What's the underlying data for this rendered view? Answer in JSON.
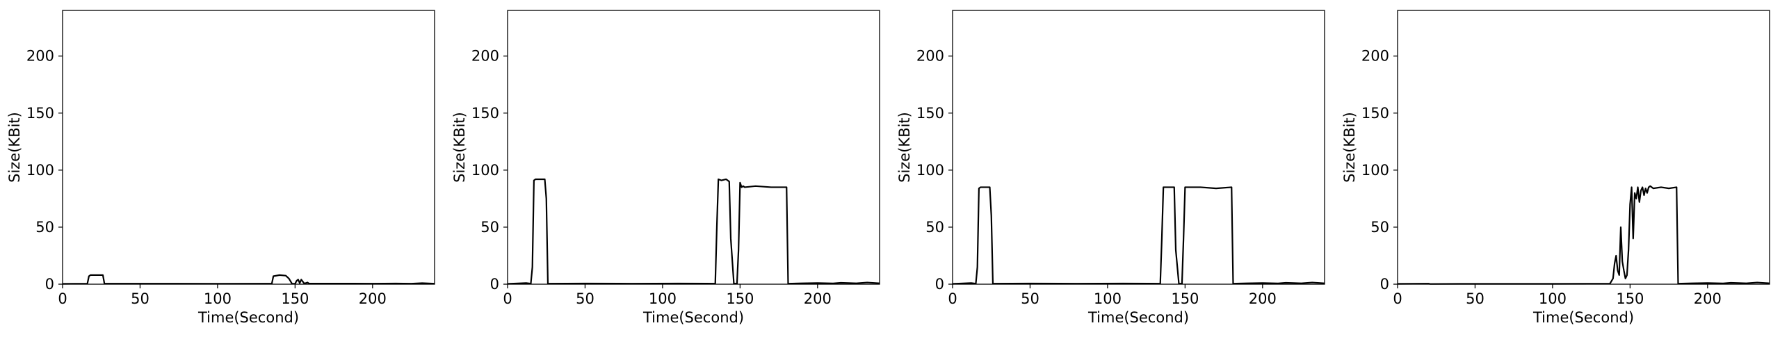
{
  "chart_data": [
    {
      "type": "line",
      "xlabel": "Time(Second)",
      "ylabel": "Size(KBit)",
      "xlim": [
        0,
        240
      ],
      "ylim": [
        0,
        240
      ],
      "xticks": [
        0,
        50,
        100,
        150,
        200
      ],
      "yticks": [
        0,
        50,
        100,
        150,
        200
      ],
      "line_color": "#000000",
      "series": [
        {
          "points": [
            [
              0,
              0.3
            ],
            [
              16,
              0.5
            ],
            [
              17,
              7
            ],
            [
              18,
              8
            ],
            [
              26,
              8
            ],
            [
              27,
              0.5
            ],
            [
              100,
              0.4
            ],
            [
              135,
              0.5
            ],
            [
              136,
              7
            ],
            [
              140,
              8
            ],
            [
              144,
              7.5
            ],
            [
              146,
              5
            ],
            [
              148,
              0.5
            ],
            [
              150,
              0.4
            ],
            [
              151,
              3
            ],
            [
              152,
              4
            ],
            [
              153,
              1
            ],
            [
              154,
              4
            ],
            [
              156,
              0.5
            ],
            [
              158,
              1.5
            ],
            [
              159,
              0.6
            ],
            [
              200,
              0.5
            ],
            [
              215,
              0.6
            ],
            [
              225,
              0.5
            ],
            [
              232,
              0.9
            ],
            [
              240,
              0.5
            ]
          ]
        }
      ]
    },
    {
      "type": "line",
      "xlabel": "Time(Second)",
      "ylabel": "Size(KBit)",
      "xlim": [
        0,
        240
      ],
      "ylim": [
        0,
        240
      ],
      "xticks": [
        0,
        50,
        100,
        150,
        200
      ],
      "yticks": [
        0,
        50,
        100,
        150,
        200
      ],
      "line_color": "#000000",
      "series": [
        {
          "points": [
            [
              0,
              0.3
            ],
            [
              12,
              1
            ],
            [
              15,
              0.5
            ],
            [
              16,
              15
            ],
            [
              17,
              91
            ],
            [
              18,
              92
            ],
            [
              24,
              92
            ],
            [
              25,
              75
            ],
            [
              26,
              0.5
            ],
            [
              50,
              0.6
            ],
            [
              80,
              0.5
            ],
            [
              110,
              0.6
            ],
            [
              134,
              0.5
            ],
            [
              135,
              50
            ],
            [
              136,
              92
            ],
            [
              138,
              91
            ],
            [
              141,
              92
            ],
            [
              143,
              90
            ],
            [
              144,
              40
            ],
            [
              146,
              0.5
            ],
            [
              148,
              0.5
            ],
            [
              149,
              30
            ],
            [
              150,
              89
            ],
            [
              151,
              85
            ],
            [
              152,
              86
            ],
            [
              153,
              85
            ],
            [
              160,
              86
            ],
            [
              170,
              85
            ],
            [
              180,
              85
            ],
            [
              181,
              0.5
            ],
            [
              190,
              0.8
            ],
            [
              200,
              1
            ],
            [
              210,
              0.7
            ],
            [
              215,
              1.2
            ],
            [
              225,
              0.8
            ],
            [
              232,
              1.5
            ],
            [
              240,
              0.8
            ]
          ]
        }
      ]
    },
    {
      "type": "line",
      "xlabel": "Time(Second)",
      "ylabel": "Size(KBit)",
      "xlim": [
        0,
        240
      ],
      "ylim": [
        0,
        240
      ],
      "xticks": [
        0,
        50,
        100,
        150,
        200
      ],
      "yticks": [
        0,
        50,
        100,
        150,
        200
      ],
      "line_color": "#000000",
      "series": [
        {
          "points": [
            [
              0,
              0.3
            ],
            [
              12,
              1
            ],
            [
              15,
              0.5
            ],
            [
              16,
              15
            ],
            [
              17,
              84
            ],
            [
              18,
              85
            ],
            [
              24,
              85
            ],
            [
              25,
              60
            ],
            [
              26,
              0.5
            ],
            [
              50,
              0.6
            ],
            [
              80,
              0.5
            ],
            [
              110,
              0.6
            ],
            [
              134,
              0.5
            ],
            [
              135,
              40
            ],
            [
              136,
              85
            ],
            [
              143,
              85
            ],
            [
              144,
              30
            ],
            [
              146,
              0.5
            ],
            [
              148,
              0.5
            ],
            [
              149,
              40
            ],
            [
              150,
              85
            ],
            [
              160,
              85
            ],
            [
              170,
              84
            ],
            [
              180,
              85
            ],
            [
              181,
              0.5
            ],
            [
              190,
              0.8
            ],
            [
              200,
              1
            ],
            [
              210,
              0.7
            ],
            [
              215,
              1.2
            ],
            [
              225,
              0.8
            ],
            [
              232,
              1.5
            ],
            [
              240,
              0.8
            ]
          ]
        }
      ]
    },
    {
      "type": "line",
      "xlabel": "Time(Second)",
      "ylabel": "Size(KBit)",
      "xlim": [
        0,
        240
      ],
      "ylim": [
        0,
        240
      ],
      "xticks": [
        0,
        50,
        100,
        150,
        200
      ],
      "yticks": [
        0,
        50,
        100,
        150,
        200
      ],
      "line_color": "#000000",
      "series": [
        {
          "points": [
            [
              0,
              0.3
            ],
            [
              20,
              0.5
            ],
            [
              21,
              0.2
            ],
            [
              40,
              0.3
            ],
            [
              100,
              0.3
            ],
            [
              130,
              0.4
            ],
            [
              137,
              0.5
            ],
            [
              139,
              5
            ],
            [
              140,
              18
            ],
            [
              141,
              25
            ],
            [
              142,
              12
            ],
            [
              143,
              8
            ],
            [
              144,
              50
            ],
            [
              145,
              20
            ],
            [
              146,
              12
            ],
            [
              147,
              5
            ],
            [
              148,
              8
            ],
            [
              149,
              30
            ],
            [
              150,
              70
            ],
            [
              151,
              85
            ],
            [
              152,
              40
            ],
            [
              153,
              80
            ],
            [
              154,
              75
            ],
            [
              155,
              85
            ],
            [
              156,
              72
            ],
            [
              157,
              82
            ],
            [
              158,
              85
            ],
            [
              159,
              78
            ],
            [
              160,
              84
            ],
            [
              161,
              80
            ],
            [
              162,
              85
            ],
            [
              163,
              86
            ],
            [
              165,
              84
            ],
            [
              170,
              85
            ],
            [
              175,
              84
            ],
            [
              180,
              85
            ],
            [
              181,
              0.5
            ],
            [
              190,
              0.8
            ],
            [
              200,
              1
            ],
            [
              210,
              0.7
            ],
            [
              215,
              1.2
            ],
            [
              225,
              0.8
            ],
            [
              232,
              1.5
            ],
            [
              240,
              0.8
            ]
          ]
        }
      ]
    }
  ]
}
